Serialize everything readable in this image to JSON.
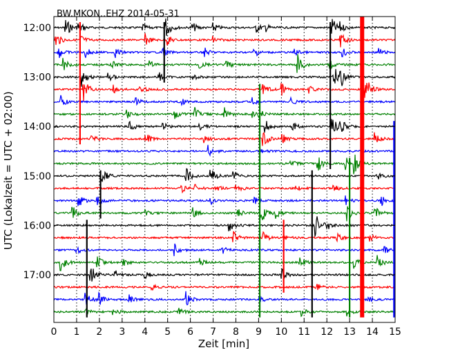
{
  "chart_data": {
    "type": "line",
    "title": "BW.MKON..EHZ 2014-05-31",
    "xlabel": "Zeit  [min]",
    "ylabel": "UTC (Lokalzeit = UTC + 02:00)",
    "xlim": [
      0,
      15
    ],
    "x_ticks": [
      "0",
      "1",
      "2",
      "3",
      "4",
      "5",
      "6",
      "7",
      "8",
      "9",
      "10",
      "11",
      "12",
      "13",
      "14",
      "15"
    ],
    "y_ticks": [
      "12:00",
      "13:00",
      "14:00",
      "15:00",
      "16:00",
      "17:00"
    ],
    "grid": "vertical dotted lines at each minute",
    "colors": [
      "#000000",
      "#ff0000",
      "#0000ff",
      "#008000"
    ],
    "traces": [
      {
        "label": "12:00",
        "color": "#000000",
        "events": [
          [
            0.5,
            0.9
          ],
          [
            1.1,
            0.5
          ],
          [
            3.9,
            0.3
          ],
          [
            4.9,
            1.0
          ],
          [
            6.1,
            0.4
          ],
          [
            7.0,
            0.4
          ],
          [
            8.9,
            0.4
          ],
          [
            9.3,
            0.3
          ],
          [
            12.2,
            0.9
          ],
          [
            12.5,
            0.5
          ]
        ]
      },
      {
        "label": "12:15",
        "color": "#ff0000",
        "events": [
          [
            0.1,
            0.6
          ],
          [
            1.2,
            0.4
          ],
          [
            4.0,
            0.5
          ],
          [
            5.0,
            0.4
          ],
          [
            7.0,
            0.3
          ],
          [
            12.6,
            0.6
          ]
        ]
      },
      {
        "label": "12:30",
        "color": "#0000ff",
        "events": [
          [
            0.2,
            0.5
          ],
          [
            1.4,
            0.4
          ],
          [
            2.7,
            0.4
          ],
          [
            4.8,
            0.3
          ],
          [
            6.6,
            0.4
          ],
          [
            8.8,
            0.4
          ],
          [
            10.6,
            0.3
          ],
          [
            12.7,
            0.4
          ],
          [
            14.3,
            0.3
          ]
        ]
      },
      {
        "label": "12:45",
        "color": "#008000",
        "events": [
          [
            0.4,
            0.5
          ],
          [
            2.5,
            0.4
          ],
          [
            4.2,
            0.3
          ],
          [
            6.4,
            0.4
          ],
          [
            7.6,
            0.3
          ],
          [
            10.7,
            1.0
          ],
          [
            12.1,
            0.4
          ]
        ]
      },
      {
        "label": "13:00",
        "color": "#000000",
        "events": [
          [
            1.2,
            0.8
          ],
          [
            2.4,
            0.4
          ],
          [
            4.6,
            0.4
          ],
          [
            6.1,
            0.3
          ],
          [
            12.3,
            1.1
          ],
          [
            12.6,
            0.8
          ]
        ]
      },
      {
        "label": "13:15",
        "color": "#ff0000",
        "events": [
          [
            1.3,
            1.0
          ],
          [
            2.6,
            0.4
          ],
          [
            3.8,
            0.4
          ],
          [
            9.2,
            0.5
          ],
          [
            10.0,
            0.5
          ],
          [
            11.2,
            0.3
          ],
          [
            13.7,
            1.3
          ]
        ]
      },
      {
        "label": "13:30",
        "color": "#0000ff",
        "events": [
          [
            0.3,
            0.5
          ],
          [
            3.6,
            0.3
          ],
          [
            5.6,
            0.3
          ],
          [
            8.7,
            0.4
          ],
          [
            10.4,
            0.3
          ]
        ]
      },
      {
        "label": "13:45",
        "color": "#008000",
        "events": [
          [
            3.2,
            0.5
          ],
          [
            5.3,
            0.5
          ],
          [
            6.2,
            0.5
          ],
          [
            7.5,
            0.5
          ],
          [
            8.7,
            0.5
          ],
          [
            9.0,
            0.4
          ]
        ]
      },
      {
        "label": "14:00",
        "color": "#000000",
        "events": [
          [
            3.3,
            0.5
          ],
          [
            4.8,
            0.3
          ],
          [
            6.4,
            0.3
          ],
          [
            9.3,
            0.5
          ],
          [
            10.5,
            0.3
          ],
          [
            12.2,
            1.0
          ],
          [
            12.6,
            0.6
          ]
        ]
      },
      {
        "label": "14:15",
        "color": "#ff0000",
        "events": [
          [
            1.6,
            0.5
          ],
          [
            4.0,
            0.6
          ],
          [
            6.6,
            0.3
          ],
          [
            9.2,
            0.7
          ],
          [
            10.0,
            0.5
          ],
          [
            14.1,
            0.5
          ]
        ]
      },
      {
        "label": "14:30",
        "color": "#0000ff",
        "events": [
          [
            6.8,
            0.5
          ],
          [
            9.1,
            0.3
          ]
        ]
      },
      {
        "label": "14:45",
        "color": "#008000",
        "events": [
          [
            10.4,
            0.3
          ],
          [
            11.6,
            0.7
          ],
          [
            12.8,
            0.6
          ],
          [
            13.2,
            0.9
          ]
        ]
      },
      {
        "label": "15:00",
        "color": "#000000",
        "events": [
          [
            2.1,
            0.8
          ],
          [
            5.8,
            0.7
          ],
          [
            6.9,
            0.6
          ],
          [
            7.9,
            0.3
          ],
          [
            14.2,
            0.4
          ]
        ]
      },
      {
        "label": "15:15",
        "color": "#ff0000",
        "events": [
          [
            5.6,
            0.4
          ],
          [
            6.2,
            0.3
          ],
          [
            7.1,
            0.3
          ],
          [
            8.0,
            0.4
          ],
          [
            10.6,
            0.3
          ],
          [
            12.3,
            0.3
          ]
        ]
      },
      {
        "label": "15:30",
        "color": "#0000ff",
        "events": [
          [
            1.1,
            0.5
          ],
          [
            1.9,
            0.4
          ],
          [
            6.9,
            0.4
          ],
          [
            8.8,
            0.3
          ],
          [
            12.8,
            0.4
          ],
          [
            14.4,
            0.4
          ]
        ]
      },
      {
        "label": "15:45",
        "color": "#008000",
        "events": [
          [
            0.8,
            0.6
          ],
          [
            4.0,
            0.3
          ],
          [
            6.1,
            0.4
          ],
          [
            8.1,
            0.3
          ],
          [
            9.1,
            1.1
          ],
          [
            9.7,
            0.5
          ],
          [
            12.9,
            0.6
          ],
          [
            14.1,
            0.6
          ]
        ]
      },
      {
        "label": "16:00",
        "color": "#000000",
        "events": [
          [
            7.7,
            0.5
          ],
          [
            11.5,
            1.0
          ],
          [
            11.9,
            0.7
          ]
        ]
      },
      {
        "label": "16:15",
        "color": "#ff0000",
        "events": [
          [
            7.9,
            0.5
          ],
          [
            9.2,
            0.4
          ],
          [
            10.1,
            0.4
          ],
          [
            12.4,
            0.4
          ],
          [
            13.9,
            0.4
          ]
        ]
      },
      {
        "label": "16:30",
        "color": "#0000ff",
        "events": [
          [
            1.0,
            0.3
          ],
          [
            5.3,
            0.5
          ],
          [
            7.4,
            0.3
          ],
          [
            14.5,
            0.4
          ]
        ]
      },
      {
        "label": "16:45",
        "color": "#008000",
        "events": [
          [
            0.3,
            0.9
          ],
          [
            1.9,
            0.5
          ],
          [
            3.0,
            0.5
          ],
          [
            6.4,
            0.3
          ],
          [
            10.8,
            0.5
          ],
          [
            13.2,
            0.5
          ],
          [
            14.2,
            0.7
          ]
        ]
      },
      {
        "label": "17:00",
        "color": "#000000",
        "events": [
          [
            1.6,
            0.9
          ],
          [
            2.7,
            0.4
          ],
          [
            4.0,
            0.3
          ],
          [
            10.0,
            0.5
          ]
        ]
      },
      {
        "label": "17:15",
        "color": "#ff0000",
        "events": [
          [
            4.3,
            0.3
          ],
          [
            11.5,
            0.3
          ]
        ]
      },
      {
        "label": "17:30",
        "color": "#0000ff",
        "events": [
          [
            1.4,
            0.6
          ],
          [
            2.0,
            0.5
          ],
          [
            3.3,
            0.4
          ],
          [
            5.8,
            0.6
          ],
          [
            9.0,
            0.3
          ],
          [
            13.8,
            0.3
          ]
        ]
      },
      {
        "label": "17:45",
        "color": "#008000",
        "events": [
          [
            1.4,
            0.3
          ],
          [
            2.6,
            0.3
          ],
          [
            5.5,
            0.3
          ],
          [
            10.9,
            0.3
          ],
          [
            12.9,
            0.3
          ]
        ]
      }
    ],
    "vertical_spikes": [
      {
        "color": "#ff0000",
        "x": 1.15,
        "from_trace": 0,
        "to_trace": 9
      },
      {
        "color": "#000000",
        "x": 1.45,
        "from_trace": 16,
        "to_trace": 23
      },
      {
        "color": "#000000",
        "x": 2.05,
        "from_trace": 12,
        "to_trace": 15
      },
      {
        "color": "#000000",
        "x": 4.85,
        "from_trace": 0,
        "to_trace": 4
      },
      {
        "color": "#008000",
        "x": 9.05,
        "from_trace": 5,
        "to_trace": 23
      },
      {
        "color": "#ff0000",
        "x": 10.1,
        "from_trace": 16,
        "to_trace": 21
      },
      {
        "color": "#000000",
        "x": 11.35,
        "from_trace": 12,
        "to_trace": 23
      },
      {
        "color": "#000000",
        "x": 12.15,
        "from_trace": 0,
        "to_trace": 11
      },
      {
        "color": "#008000",
        "x": 13.0,
        "from_trace": 11,
        "to_trace": 23
      },
      {
        "color": "#ff0000",
        "x": 13.55,
        "from_trace": -1,
        "to_trace": 23
      },
      {
        "color": "#0000ff",
        "x": 14.95,
        "from_trace": 8,
        "to_trace": 23
      }
    ]
  }
}
